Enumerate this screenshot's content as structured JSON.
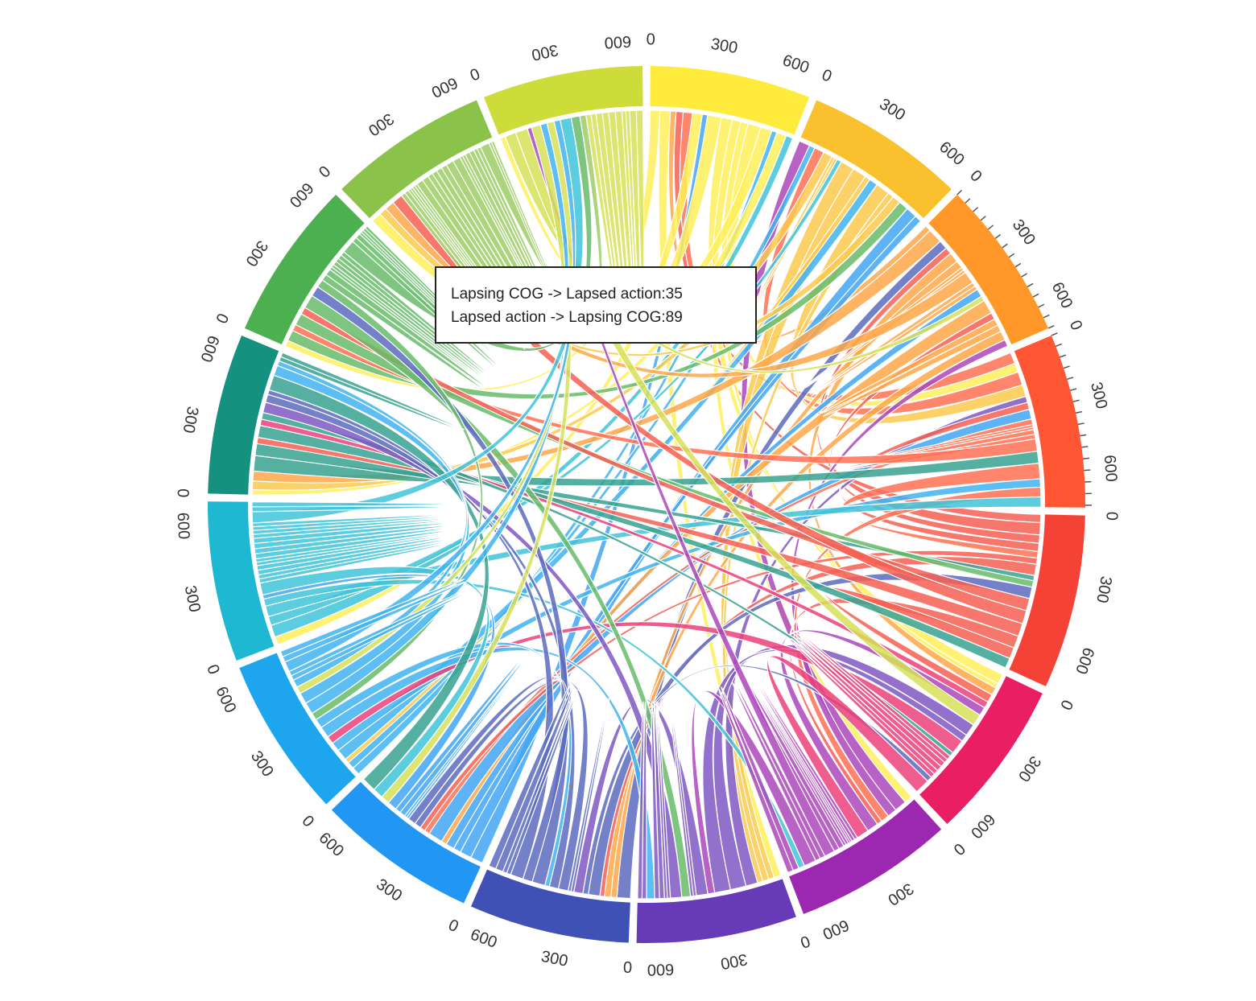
{
  "chart_data": {
    "type": "chord",
    "title": "",
    "groups": [
      {
        "color": "#ffeb3b",
        "total": 700
      },
      {
        "color": "#fbc02d",
        "total": 700
      },
      {
        "color": "#ff9828",
        "total": 700
      },
      {
        "color": "#ff5733",
        "total": 760
      },
      {
        "color": "#f44336",
        "total": 760
      },
      {
        "color": "#e91e63",
        "total": 700
      },
      {
        "color": "#9c27b0",
        "total": 700
      },
      {
        "color": "#673ab7",
        "total": 700
      },
      {
        "color": "#3f51b5",
        "total": 700
      },
      {
        "color": "#2196f3",
        "total": 700
      },
      {
        "color": "#1da5ee",
        "total": 700
      },
      {
        "color": "#1eb8d2",
        "total": 700
      },
      {
        "color": "#14917f",
        "total": 700
      },
      {
        "color": "#4caf50",
        "total": 700
      },
      {
        "color": "#8bc34a",
        "total": 700
      },
      {
        "color": "#cddc39",
        "total": 700
      }
    ],
    "tick_values": [
      0,
      300,
      600
    ],
    "tick_step": 300,
    "minor_tick_step": 50,
    "minor_ticks_on_groups": [
      2,
      3
    ]
  },
  "tooltip": {
    "line1": "Lapsing COG -> Lapsed action:35",
    "line2": "Lapsed action -> Lapsing COG:89"
  }
}
